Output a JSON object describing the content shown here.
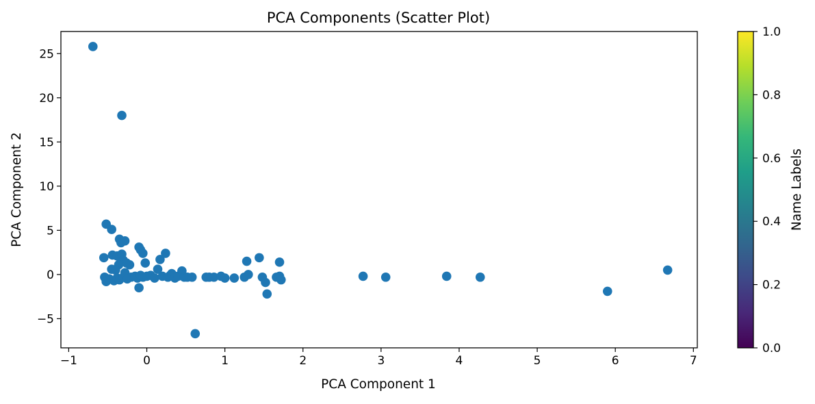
{
  "chart_data": {
    "type": "scatter",
    "title": "PCA Components (Scatter Plot)",
    "xlabel": "PCA Component 1",
    "ylabel": "PCA Component 2",
    "xlim": [
      -1.1,
      7.05
    ],
    "ylim": [
      -8.3,
      27.5
    ],
    "xticks": [
      -1,
      0,
      1,
      2,
      3,
      4,
      5,
      6,
      7
    ],
    "xtick_labels": [
      "−1",
      "0",
      "1",
      "2",
      "3",
      "4",
      "5",
      "6",
      "7"
    ],
    "yticks": [
      -5,
      0,
      5,
      10,
      15,
      20,
      25
    ],
    "ytick_labels": [
      "−5",
      "0",
      "5",
      "10",
      "15",
      "20",
      "25"
    ],
    "grid": false,
    "marker_color": "#1f77b4",
    "colorbar": {
      "label": "Name Labels",
      "range": [
        0.0,
        1.0
      ],
      "ticks": [
        0.0,
        0.2,
        0.4,
        0.6,
        0.8,
        1.0
      ],
      "tick_labels": [
        "0.0",
        "0.2",
        "0.4",
        "0.6",
        "0.8",
        "1.0"
      ],
      "colormap": "viridis",
      "stops": [
        "#440154",
        "#482878",
        "#3e4a89",
        "#31688e",
        "#26828e",
        "#1f9e89",
        "#35b779",
        "#6ece58",
        "#b5de2b",
        "#fde725"
      ]
    },
    "points": [
      [
        -0.69,
        25.8
      ],
      [
        -0.32,
        18.0
      ],
      [
        0.62,
        -6.7
      ],
      [
        -0.52,
        5.7
      ],
      [
        -0.45,
        5.1
      ],
      [
        -0.35,
        4.0
      ],
      [
        -0.33,
        3.6
      ],
      [
        -0.28,
        3.8
      ],
      [
        -0.55,
        1.9
      ],
      [
        -0.44,
        2.2
      ],
      [
        -0.38,
        2.1
      ],
      [
        -0.32,
        2.3
      ],
      [
        -0.3,
        1.6
      ],
      [
        -0.26,
        1.3
      ],
      [
        -0.22,
        1.1
      ],
      [
        -0.36,
        1.1
      ],
      [
        -0.4,
        0.5
      ],
      [
        -0.45,
        0.6
      ],
      [
        -0.28,
        0.2
      ],
      [
        -0.54,
        -0.3
      ],
      [
        -0.52,
        -0.8
      ],
      [
        -0.48,
        -0.5
      ],
      [
        -0.42,
        -0.7
      ],
      [
        -0.38,
        -0.4
      ],
      [
        -0.35,
        -0.6
      ],
      [
        -0.3,
        -0.3
      ],
      [
        -0.25,
        -0.5
      ],
      [
        -0.2,
        -0.3
      ],
      [
        -0.15,
        -0.2
      ],
      [
        -0.12,
        -0.4
      ],
      [
        -0.1,
        -1.5
      ],
      [
        -0.08,
        -0.1
      ],
      [
        -0.05,
        -0.3
      ],
      [
        -0.1,
        3.1
      ],
      [
        -0.08,
        2.8
      ],
      [
        -0.05,
        2.4
      ],
      [
        -0.02,
        1.3
      ],
      [
        0.0,
        -0.2
      ],
      [
        0.05,
        -0.1
      ],
      [
        0.1,
        -0.4
      ],
      [
        0.14,
        0.6
      ],
      [
        0.17,
        1.7
      ],
      [
        0.2,
        -0.2
      ],
      [
        0.24,
        2.4
      ],
      [
        0.27,
        -0.3
      ],
      [
        0.3,
        -0.1
      ],
      [
        0.32,
        0.1
      ],
      [
        0.36,
        -0.4
      ],
      [
        0.4,
        -0.2
      ],
      [
        0.45,
        0.4
      ],
      [
        0.48,
        -0.3
      ],
      [
        0.52,
        -0.3
      ],
      [
        0.58,
        -0.3
      ],
      [
        0.76,
        -0.3
      ],
      [
        0.8,
        -0.3
      ],
      [
        0.86,
        -0.3
      ],
      [
        0.95,
        -0.2
      ],
      [
        1.0,
        -0.4
      ],
      [
        1.12,
        -0.4
      ],
      [
        1.25,
        -0.3
      ],
      [
        1.28,
        1.5
      ],
      [
        1.3,
        0.0
      ],
      [
        1.44,
        1.9
      ],
      [
        1.48,
        -0.3
      ],
      [
        1.52,
        -0.9
      ],
      [
        1.54,
        -2.2
      ],
      [
        1.66,
        -0.3
      ],
      [
        1.7,
        -0.2
      ],
      [
        1.7,
        1.4
      ],
      [
        1.72,
        -0.6
      ],
      [
        2.77,
        -0.2
      ],
      [
        3.06,
        -0.3
      ],
      [
        3.84,
        -0.2
      ],
      [
        4.27,
        -0.3
      ],
      [
        5.9,
        -1.9
      ],
      [
        6.67,
        0.5
      ]
    ]
  }
}
